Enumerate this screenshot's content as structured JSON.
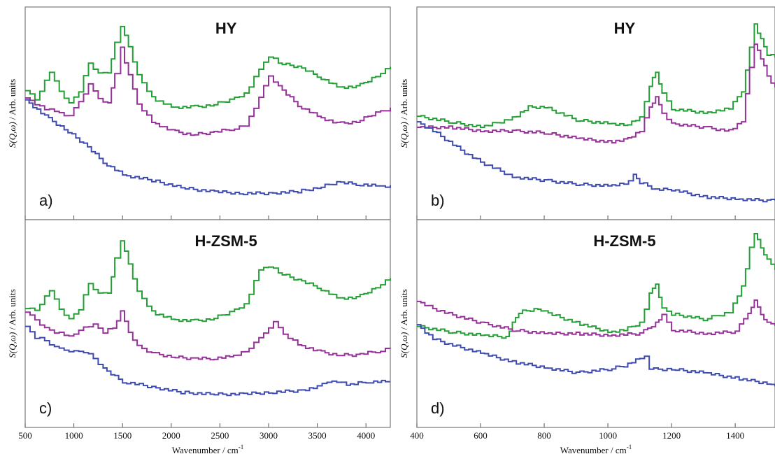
{
  "figure": {
    "xlabel_text": "Wavenumber / cm",
    "xlabel_sup": "-1",
    "ylabel_main": "S(Q,ω)",
    "ylabel_units": " / Arb. units"
  },
  "colors": {
    "green": "#23a035",
    "purple": "#96319a",
    "blue": "#3d4ab0"
  },
  "chart_data": [
    {
      "type": "line",
      "panel": "a)",
      "title": "HY",
      "xlim": [
        500,
        4250
      ],
      "ylim": [
        0,
        1
      ],
      "xticks": [
        500,
        1000,
        1500,
        2000,
        2500,
        3000,
        3500,
        4000
      ],
      "xticklabels": [
        "500",
        "1000",
        "1500",
        "2000",
        "2500",
        "3000",
        "3500",
        "4000"
      ],
      "series": [
        {
          "color": "green",
          "x": [
            500,
            600,
            750,
            850,
            950,
            1050,
            1150,
            1250,
            1350,
            1420,
            1480,
            1560,
            1650,
            1800,
            2000,
            2200,
            2400,
            2600,
            2750,
            2900,
            3000,
            3100,
            3300,
            3500,
            3700,
            3900,
            4100,
            4250
          ],
          "y": [
            0.62,
            0.57,
            0.72,
            0.62,
            0.55,
            0.62,
            0.77,
            0.71,
            0.72,
            0.88,
            0.97,
            0.86,
            0.7,
            0.58,
            0.53,
            0.53,
            0.54,
            0.57,
            0.6,
            0.74,
            0.81,
            0.77,
            0.75,
            0.7,
            0.64,
            0.64,
            0.7,
            0.75
          ]
        },
        {
          "color": "purple",
          "x": [
            500,
            650,
            800,
            950,
            1050,
            1150,
            1250,
            1350,
            1420,
            1480,
            1560,
            1650,
            1800,
            2000,
            2200,
            2400,
            2600,
            2750,
            2900,
            3000,
            3100,
            3300,
            3500,
            3700,
            3900,
            4100,
            4250
          ],
          "y": [
            0.58,
            0.53,
            0.51,
            0.48,
            0.56,
            0.65,
            0.58,
            0.55,
            0.72,
            0.85,
            0.7,
            0.55,
            0.45,
            0.4,
            0.38,
            0.39,
            0.41,
            0.43,
            0.58,
            0.7,
            0.64,
            0.54,
            0.48,
            0.44,
            0.45,
            0.5,
            0.52
          ]
        },
        {
          "color": "blue",
          "x": [
            500,
            700,
            900,
            1100,
            1300,
            1500,
            1800,
            2100,
            2400,
            2700,
            3000,
            3300,
            3500,
            3700,
            3900,
            4100,
            4250
          ],
          "y": [
            0.57,
            0.48,
            0.41,
            0.33,
            0.23,
            0.16,
            0.13,
            0.09,
            0.07,
            0.06,
            0.06,
            0.07,
            0.09,
            0.12,
            0.11,
            0.1,
            0.1
          ]
        }
      ]
    },
    {
      "type": "line",
      "panel": "b)",
      "title": "HY",
      "xlim": [
        400,
        1525
      ],
      "ylim": [
        0,
        1
      ],
      "xticks": [
        400,
        600,
        800,
        1000,
        1200,
        1400
      ],
      "xticklabels": [
        "400",
        "600",
        "800",
        "1000",
        "1200",
        "1400"
      ],
      "series": [
        {
          "color": "green",
          "x": [
            400,
            500,
            600,
            700,
            750,
            800,
            900,
            1000,
            1050,
            1100,
            1130,
            1150,
            1170,
            1200,
            1300,
            1380,
            1420,
            1445,
            1460,
            1480,
            1500,
            1525
          ],
          "y": [
            0.48,
            0.45,
            0.42,
            0.47,
            0.53,
            0.53,
            0.46,
            0.44,
            0.43,
            0.47,
            0.65,
            0.72,
            0.6,
            0.52,
            0.5,
            0.52,
            0.62,
            0.85,
            0.98,
            0.9,
            0.82,
            0.8
          ]
        },
        {
          "color": "purple",
          "x": [
            400,
            500,
            600,
            700,
            800,
            900,
            1000,
            1050,
            1100,
            1130,
            1150,
            1170,
            1200,
            1300,
            1380,
            1420,
            1445,
            1460,
            1480,
            1500,
            1525
          ],
          "y": [
            0.42,
            0.42,
            0.4,
            0.4,
            0.39,
            0.36,
            0.34,
            0.35,
            0.4,
            0.53,
            0.58,
            0.5,
            0.44,
            0.42,
            0.4,
            0.45,
            0.75,
            0.88,
            0.8,
            0.7,
            0.63
          ]
        },
        {
          "color": "blue",
          "x": [
            400,
            450,
            500,
            550,
            600,
            700,
            800,
            900,
            1000,
            1050,
            1080,
            1100,
            1150,
            1200,
            1300,
            1400,
            1500,
            1525
          ],
          "y": [
            0.45,
            0.4,
            0.34,
            0.28,
            0.23,
            0.15,
            0.13,
            0.11,
            0.1,
            0.11,
            0.16,
            0.12,
            0.08,
            0.08,
            0.04,
            0.03,
            0.02,
            0.02
          ]
        }
      ]
    },
    {
      "type": "line",
      "panel": "c)",
      "title": "H-ZSM-5",
      "xlim": [
        500,
        4250
      ],
      "ylim": [
        0,
        1
      ],
      "xticks": [
        500,
        1000,
        1500,
        2000,
        2500,
        3000,
        3500,
        4000
      ],
      "xticklabels": [
        "500",
        "1000",
        "1500",
        "2000",
        "2500",
        "3000",
        "3500",
        "4000"
      ],
      "series": [
        {
          "color": "green",
          "x": [
            500,
            600,
            750,
            850,
            950,
            1050,
            1150,
            1250,
            1350,
            1420,
            1480,
            1560,
            1650,
            1800,
            2000,
            2200,
            2400,
            2600,
            2750,
            2900,
            3000,
            3100,
            3300,
            3500,
            3700,
            3900,
            4100,
            4250
          ],
          "y": [
            0.58,
            0.57,
            0.68,
            0.58,
            0.52,
            0.58,
            0.72,
            0.66,
            0.67,
            0.86,
            0.96,
            0.83,
            0.67,
            0.56,
            0.52,
            0.51,
            0.52,
            0.56,
            0.6,
            0.8,
            0.82,
            0.78,
            0.74,
            0.7,
            0.64,
            0.64,
            0.7,
            0.75
          ]
        },
        {
          "color": "purple",
          "x": [
            500,
            600,
            700,
            800,
            900,
            1000,
            1100,
            1200,
            1300,
            1400,
            1480,
            1560,
            1650,
            1800,
            2000,
            2200,
            2400,
            2600,
            2800,
            2950,
            3050,
            3150,
            3300,
            3500,
            3700,
            3900,
            4100,
            4250
          ],
          "y": [
            0.56,
            0.52,
            0.47,
            0.45,
            0.43,
            0.43,
            0.48,
            0.49,
            0.45,
            0.47,
            0.56,
            0.45,
            0.37,
            0.33,
            0.31,
            0.3,
            0.3,
            0.31,
            0.35,
            0.45,
            0.5,
            0.44,
            0.38,
            0.34,
            0.32,
            0.32,
            0.34,
            0.36
          ]
        },
        {
          "color": "blue",
          "x": [
            500,
            600,
            700,
            800,
            900,
            1000,
            1100,
            1200,
            1300,
            1500,
            1800,
            2100,
            2400,
            2700,
            3000,
            3300,
            3500,
            3650,
            3800,
            4000,
            4200,
            4250
          ],
          "y": [
            0.48,
            0.42,
            0.4,
            0.36,
            0.35,
            0.34,
            0.34,
            0.3,
            0.24,
            0.17,
            0.14,
            0.11,
            0.1,
            0.1,
            0.11,
            0.12,
            0.14,
            0.18,
            0.15,
            0.17,
            0.17,
            0.17
          ]
        }
      ]
    },
    {
      "type": "line",
      "panel": "d)",
      "title": "H-ZSM-5",
      "xlim": [
        400,
        1525
      ],
      "ylim": [
        0,
        1
      ],
      "xticks": [
        400,
        600,
        800,
        1000,
        1200,
        1400
      ],
      "xticklabels": [
        "400",
        "600",
        "800",
        "1000",
        "1200",
        "1400"
      ],
      "series": [
        {
          "color": "green",
          "x": [
            400,
            500,
            600,
            680,
            700,
            720,
            780,
            800,
            900,
            1000,
            1050,
            1100,
            1130,
            1150,
            1170,
            1200,
            1300,
            1380,
            1420,
            1445,
            1460,
            1480,
            1500,
            1525
          ],
          "y": [
            0.48,
            0.45,
            0.43,
            0.42,
            0.5,
            0.56,
            0.58,
            0.56,
            0.5,
            0.45,
            0.46,
            0.5,
            0.66,
            0.72,
            0.58,
            0.55,
            0.52,
            0.56,
            0.7,
            0.92,
            1.0,
            0.92,
            0.85,
            0.8
          ]
        },
        {
          "color": "purple",
          "x": [
            400,
            450,
            500,
            600,
            700,
            800,
            900,
            1000,
            1100,
            1150,
            1170,
            1200,
            1300,
            1400,
            1440,
            1460,
            1480,
            1500,
            1525
          ],
          "y": [
            0.62,
            0.58,
            0.55,
            0.5,
            0.46,
            0.44,
            0.44,
            0.43,
            0.44,
            0.5,
            0.54,
            0.46,
            0.44,
            0.45,
            0.56,
            0.62,
            0.55,
            0.5,
            0.49
          ]
        },
        {
          "color": "blue",
          "x": [
            400,
            450,
            500,
            600,
            700,
            800,
            900,
            1000,
            1050,
            1100,
            1115,
            1130,
            1200,
            1300,
            1400,
            1500,
            1525
          ],
          "y": [
            0.49,
            0.41,
            0.38,
            0.33,
            0.28,
            0.25,
            0.22,
            0.24,
            0.26,
            0.3,
            0.32,
            0.24,
            0.24,
            0.22,
            0.19,
            0.16,
            0.15
          ]
        }
      ]
    }
  ]
}
